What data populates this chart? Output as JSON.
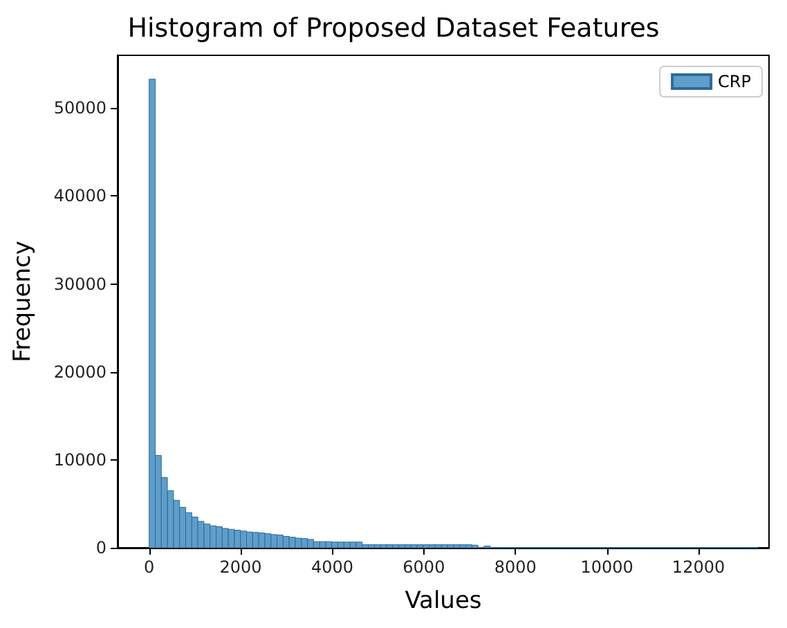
{
  "chart_data": {
    "type": "histogram",
    "title": "Histogram of Proposed Dataset Features",
    "xlabel": "Values",
    "ylabel": "Frequency",
    "bins": [
      0,
      133,
      266,
      399,
      532,
      665,
      798,
      931,
      1064,
      1197,
      1330,
      1463,
      1596,
      1729,
      1862,
      1995,
      2128,
      2261,
      2394,
      2527,
      2660,
      2793,
      2926,
      3059,
      3192,
      3325,
      3458,
      3591,
      3724,
      3857,
      3990,
      4123,
      4256,
      4389,
      4522,
      4655,
      4788,
      4921,
      5054,
      5187,
      5320,
      5453,
      5586,
      5719,
      5852,
      5985,
      6118,
      6251,
      6384,
      6517,
      6650,
      6783,
      6916,
      7049,
      7182,
      7315,
      7448,
      7581,
      7714,
      7847,
      7980,
      8113,
      8246,
      8379,
      8512,
      8645,
      8778,
      8911,
      9044,
      9177,
      9310,
      9443,
      9576,
      9709,
      9842,
      9975,
      10108,
      10241,
      10374,
      10507,
      10640,
      10773,
      10906,
      11039,
      11172,
      11305,
      11438,
      11571,
      11704,
      11837,
      11970,
      12103,
      12236,
      12369,
      12502,
      12635,
      12768,
      12901,
      13034,
      13167,
      13300
    ],
    "series": [
      {
        "name": "CRP",
        "color": "#5f9ecb",
        "values": [
          53300,
          10500,
          8000,
          6500,
          5400,
          4600,
          4000,
          3500,
          3000,
          2700,
          2500,
          2400,
          2200,
          2100,
          2000,
          1900,
          1800,
          1750,
          1700,
          1600,
          1500,
          1450,
          1300,
          1200,
          1100,
          1050,
          950,
          700,
          700,
          700,
          650,
          650,
          650,
          650,
          650,
          350,
          350,
          350,
          350,
          350,
          350,
          350,
          350,
          350,
          350,
          350,
          350,
          350,
          350,
          350,
          350,
          350,
          350,
          300,
          50,
          200,
          20,
          20,
          20,
          20,
          20,
          20,
          20,
          20,
          20,
          20,
          20,
          20,
          20,
          20,
          20,
          20,
          20,
          20,
          20,
          20,
          20,
          20,
          20,
          20,
          20,
          20,
          20,
          20,
          20,
          20,
          20,
          20,
          20,
          20,
          20,
          20,
          20,
          20,
          20,
          20,
          20,
          20,
          20,
          20
        ]
      }
    ],
    "xlim": [
      -690,
      13540
    ],
    "ylim": [
      0,
      56000
    ],
    "xticks": [
      0,
      2000,
      4000,
      6000,
      8000,
      10000,
      12000
    ],
    "yticks": [
      0,
      10000,
      20000,
      30000,
      40000,
      50000
    ],
    "grid": false,
    "legend": "top right"
  }
}
